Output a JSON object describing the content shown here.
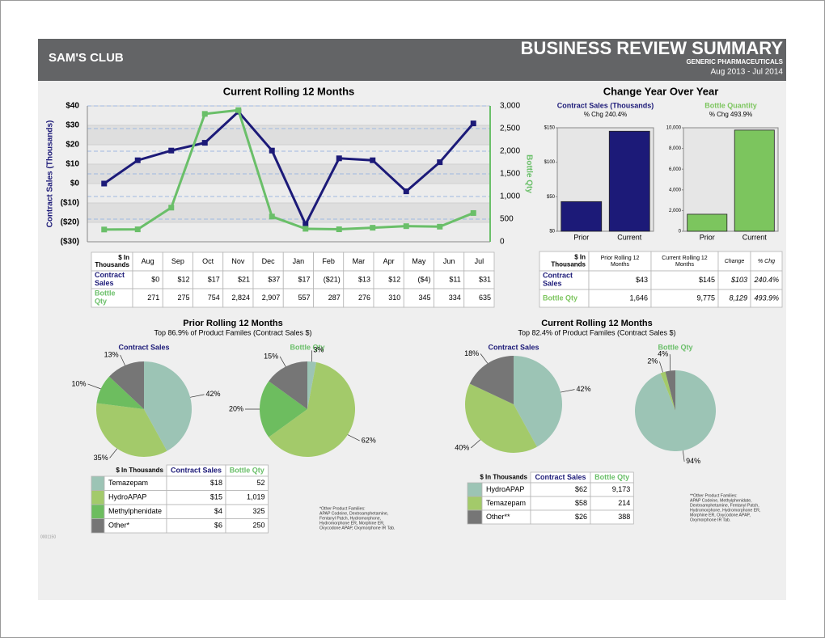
{
  "header": {
    "brand": "SAM'S CLUB",
    "title": "BUSINESS REVIEW SUMMARY",
    "subtitle": "GENERIC PHARMACEUTICALS",
    "period": "Aug 2013 - Jul 2014"
  },
  "chart_data": [
    {
      "type": "line",
      "title": "Current Rolling 12 Months",
      "categories": [
        "Aug",
        "Sep",
        "Oct",
        "Nov",
        "Dec",
        "Jan",
        "Feb",
        "Mar",
        "Apr",
        "May",
        "Jun",
        "Jul"
      ],
      "y_label": "Contract Sales (Thousands)",
      "y2_label": "Bottle Qty",
      "table_header": "$ In Thousands",
      "series": [
        {
          "name": "Contract Sales",
          "color": "#1c1a78",
          "values": [
            0,
            12,
            17,
            21,
            37,
            17,
            -21,
            13,
            12,
            -4,
            11,
            31
          ],
          "value_labels": [
            "$0",
            "$12",
            "$17",
            "$21",
            "$37",
            "$17",
            "($21)",
            "$13",
            "$12",
            "($4)",
            "$11",
            "$31"
          ]
        },
        {
          "name": "Bottle Qty",
          "color": "#6abf69",
          "axis": "y2",
          "values": [
            271,
            275,
            754,
            2824,
            2907,
            557,
            287,
            276,
            310,
            345,
            334,
            635
          ],
          "value_labels": [
            "271",
            "275",
            "754",
            "2,824",
            "2,907",
            "557",
            "287",
            "276",
            "310",
            "345",
            "334",
            "635"
          ]
        }
      ],
      "ylim": [
        -30,
        40
      ],
      "yticks": [
        {
          "value": -30,
          "label": "($30)"
        },
        {
          "value": -20,
          "label": "($20)"
        },
        {
          "value": -10,
          "label": "($10)"
        },
        {
          "value": 0,
          "label": "$0"
        },
        {
          "value": 10,
          "label": "$10"
        },
        {
          "value": 20,
          "label": "$20"
        },
        {
          "value": 30,
          "label": "$30"
        },
        {
          "value": 40,
          "label": "$40"
        }
      ],
      "y2lim": [
        0,
        3000
      ],
      "y2ticks": [
        0,
        500,
        {
          "value": 1000,
          "label": "1,000"
        },
        {
          "value": 1500,
          "label": "1,500"
        },
        {
          "value": 2000,
          "label": "2,000"
        },
        {
          "value": 2500,
          "label": "2,500"
        },
        {
          "value": 3000,
          "label": "3,000"
        }
      ],
      "grid": true
    },
    {
      "type": "bar",
      "group_title": "Change Year Over Year",
      "title": "Contract Sales (Thousands)",
      "subtitle": "% Chg 240.4%",
      "categories": [
        "Prior",
        "Current"
      ],
      "values": [
        43,
        145
      ],
      "value_labels": [
        "$43",
        "$145"
      ],
      "color": "#1c1a78",
      "ylim": [
        0,
        150
      ],
      "yticks": [
        {
          "value": 0,
          "label": "$0"
        },
        {
          "value": 50,
          "label": "$50"
        },
        {
          "value": 100,
          "label": "$100"
        },
        {
          "value": 150,
          "label": "$150"
        }
      ]
    },
    {
      "type": "bar",
      "title": "Bottle Quantity",
      "subtitle": "% Chg 493.9%",
      "categories": [
        "Prior",
        "Current"
      ],
      "values": [
        1646,
        9775
      ],
      "value_labels": [
        "1,646",
        "9,775"
      ],
      "color": "#7cc55e",
      "ylim": [
        0,
        10000
      ],
      "yticks": [
        0,
        {
          "value": 2000,
          "label": "2,000"
        },
        {
          "value": 4000,
          "label": "4,000"
        },
        {
          "value": 6000,
          "label": "6,000"
        },
        {
          "value": 8000,
          "label": "8,000"
        },
        {
          "value": 10000,
          "label": "10,000"
        }
      ]
    },
    {
      "type": "pie",
      "section_title": "Prior Rolling 12 Months",
      "section_subtitle": "Top 86.9% of Product Familes (Contract Sales $)",
      "title": "Contract Sales",
      "title_color": "#1c1a78",
      "categories": [
        "Temazepam",
        "HydroAPAP",
        "Methylphenidate",
        "Other*"
      ],
      "values": [
        42,
        35,
        10,
        13
      ],
      "value_labels": [
        "42%",
        "35%",
        "10%",
        "13%"
      ],
      "colors": [
        "#9cc4b5",
        "#a3ca6a",
        "#6dbd5f",
        "#767676"
      ]
    },
    {
      "type": "pie",
      "title": "Bottle Qty",
      "title_color": "#6abf69",
      "categories": [
        "Temazepam",
        "HydroAPAP",
        "Methylphenidate",
        "Other*"
      ],
      "values": [
        3,
        62,
        20,
        15
      ],
      "value_labels": [
        "3%",
        "62%",
        "20%",
        "15%"
      ],
      "colors": [
        "#9cc4b5",
        "#a3ca6a",
        "#6dbd5f",
        "#767676"
      ]
    },
    {
      "type": "pie",
      "section_title": "Current Rolling 12 Months",
      "section_subtitle": "Top 82.4% of Product Familes (Contract Sales $)",
      "title": "Contract Sales",
      "title_color": "#1c1a78",
      "categories": [
        "HydroAPAP",
        "Temazepam",
        "Other**"
      ],
      "values": [
        42,
        40,
        18
      ],
      "value_labels": [
        "42%",
        "40%",
        "18%"
      ],
      "colors": [
        "#9cc4b5",
        "#a3ca6a",
        "#767676"
      ]
    },
    {
      "type": "pie",
      "title": "Bottle Qty",
      "title_color": "#6abf69",
      "categories": [
        "HydroAPAP",
        "Temazepam",
        "Other**"
      ],
      "values": [
        94,
        2,
        4
      ],
      "value_labels": [
        "94%",
        "2%",
        "4%"
      ],
      "colors": [
        "#9cc4b5",
        "#a3ca6a",
        "#767676"
      ]
    }
  ],
  "yoy_table": {
    "headers": [
      "$ In Thousands",
      "Prior Rolling 12 Months",
      "Current Rolling 12 Months",
      "Change",
      "% Chg"
    ],
    "rows": [
      {
        "name": "Contract Sales",
        "change": "$103",
        "pct": "240.4%"
      },
      {
        "name": "Bottle Qty",
        "change": "8,129",
        "pct": "493.9%"
      }
    ]
  },
  "prior_table": {
    "headers": [
      "$ In Thousands",
      "Contract Sales",
      "Bottle Qty"
    ],
    "rows": [
      [
        "$18",
        "52"
      ],
      [
        "$15",
        "1,019"
      ],
      [
        "$4",
        "325"
      ],
      [
        "$6",
        "250"
      ]
    ]
  },
  "current_table": {
    "headers": [
      "$ In Thousands",
      "Contract Sales",
      "Bottle Qty"
    ],
    "rows": [
      [
        "$62",
        "9,173"
      ],
      [
        "$58",
        "214"
      ],
      [
        "$26",
        "388"
      ]
    ]
  },
  "notes": [
    {
      "lines": [
        "*Other Product Families:",
        "APAP Codeine, Dextroamphetamine,",
        "Fentanyl Patch, Hydromorphone,",
        "Hydromorphone ER, Morphine ER,",
        "Oxycodone APAP, Oxymorphone IR Tab."
      ]
    },
    {
      "lines": [
        "**Other Product Families:",
        "APAP Codeine, Methylphenidate,",
        "Dextroamphetamine, Fentanyl Patch,",
        "Hydromorphone, Hydromorphone ER,",
        "Morphine ER, Oxycodone APAP,",
        "Oxymorphone IR Tab."
      ]
    }
  ],
  "code": "0001150"
}
